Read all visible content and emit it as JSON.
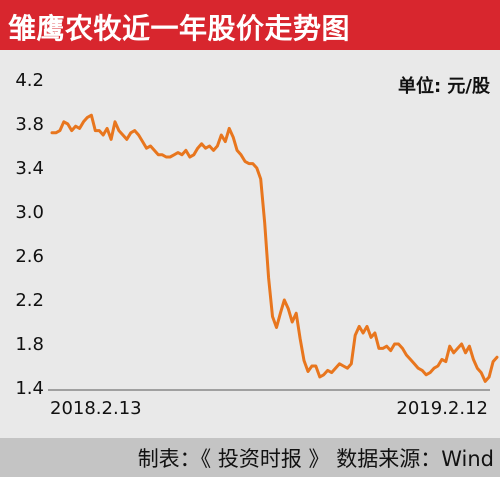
{
  "header": {
    "title": "雏鹰农牧近一年股价走势图"
  },
  "footer": {
    "source": "制表：《 投资时报 》 数据来源：Wind"
  },
  "colors": {
    "title_bg": "#d8262e",
    "line": "#e8761e",
    "plot_bg": "#e9e9e9",
    "footer_bg": "#c4c4c4"
  },
  "chart_data": {
    "type": "line",
    "unit_label": "单位: 元/股",
    "ylim": [
      1.4,
      4.2
    ],
    "yticks": [
      "4.2",
      "3.8",
      "3.4",
      "3.0",
      "2.6",
      "2.2",
      "1.8",
      "1.4"
    ],
    "yticks_values": [
      4.2,
      3.8,
      3.4,
      3.0,
      2.6,
      2.2,
      1.8,
      1.4
    ],
    "x_start_label": "2018.2.13",
    "x_end_label": "2019.2.12",
    "grid": false,
    "series": [
      {
        "values": [
          3.72,
          3.72,
          3.74,
          3.82,
          3.8,
          3.74,
          3.78,
          3.76,
          3.82,
          3.86,
          3.88,
          3.74,
          3.74,
          3.7,
          3.76,
          3.66,
          3.82,
          3.74,
          3.7,
          3.66,
          3.72,
          3.74,
          3.7,
          3.64,
          3.58,
          3.6,
          3.56,
          3.52,
          3.52,
          3.5,
          3.5,
          3.52,
          3.54,
          3.52,
          3.56,
          3.5,
          3.52,
          3.58,
          3.62,
          3.58,
          3.6,
          3.56,
          3.6,
          3.7,
          3.64,
          3.76,
          3.68,
          3.56,
          3.52,
          3.46,
          3.44,
          3.44,
          3.4,
          3.3,
          2.9,
          2.4,
          2.05,
          1.95,
          2.08,
          2.2,
          2.12,
          2.0,
          2.08,
          1.85,
          1.65,
          1.55,
          1.6,
          1.6,
          1.5,
          1.52,
          1.56,
          1.54,
          1.58,
          1.62,
          1.6,
          1.58,
          1.62,
          1.88,
          1.96,
          1.9,
          1.96,
          1.86,
          1.9,
          1.76,
          1.76,
          1.78,
          1.74,
          1.8,
          1.8,
          1.76,
          1.7,
          1.66,
          1.62,
          1.58,
          1.56,
          1.52,
          1.54,
          1.58,
          1.6,
          1.66,
          1.64,
          1.78,
          1.72,
          1.76,
          1.8,
          1.72,
          1.78,
          1.66,
          1.58,
          1.54,
          1.46,
          1.5,
          1.64,
          1.68
        ]
      }
    ]
  }
}
